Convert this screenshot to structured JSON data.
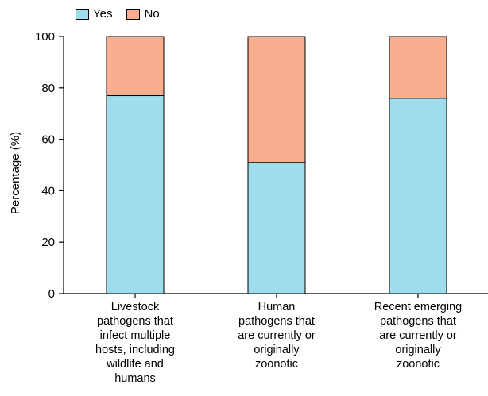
{
  "chart_data": {
    "type": "bar",
    "stacked": true,
    "categories": [
      [
        "Livestock",
        "pathogens that",
        "infect multiple",
        "hosts, including",
        "wildlife and",
        "humans"
      ],
      [
        "Human",
        "pathogens that",
        "are currently or",
        "originally",
        "zoonotic"
      ],
      [
        "Recent emerging",
        "pathogens that",
        "are currently or",
        "originally",
        "zoonotic"
      ]
    ],
    "series": [
      {
        "name": "Yes",
        "values": [
          77,
          51,
          76
        ],
        "color": "#9fdcec"
      },
      {
        "name": "No",
        "values": [
          23,
          49,
          24
        ],
        "color": "#f9ae8f"
      }
    ],
    "ylabel": "Percentage (%)",
    "xlabel": "",
    "ylim": [
      0,
      100
    ],
    "yticks": [
      "0",
      "20",
      "40",
      "60",
      "80",
      "100"
    ],
    "grid": false,
    "legend_position": "top-left"
  }
}
